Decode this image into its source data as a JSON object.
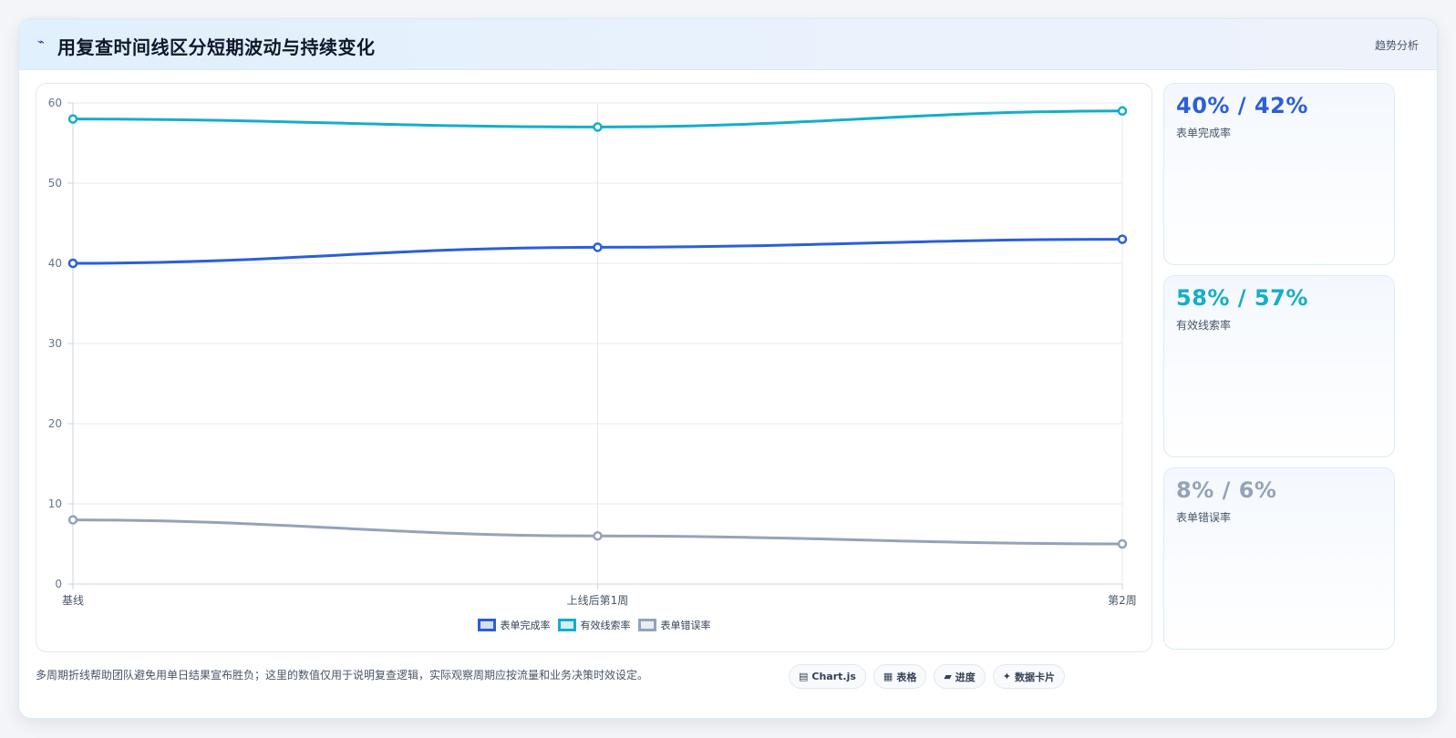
{
  "header": {
    "icon": "⌁",
    "title": "用复查时间线区分短期波动与持续变化",
    "badge": "趋势分析"
  },
  "stats": [
    {
      "value": "40% / 42%",
      "label": "表单完成率",
      "color": "#2b5fd9"
    },
    {
      "value": "58% / 57%",
      "label": "有效线索率",
      "color": "#13aecb"
    },
    {
      "value": "8% / 6%",
      "label": "表单错误率",
      "color": "#94a3b8"
    }
  ],
  "footer": {
    "note": "多周期折线帮助团队避免用单日结果宣布胜负；这里的数值仅用于说明复查逻辑，实际观察周期应按流量和业务决策时效设定。"
  },
  "tags": [
    {
      "icon": "▤",
      "label": "Chart.js"
    },
    {
      "icon": "▦",
      "label": "表格"
    },
    {
      "icon": "▰",
      "label": "进度"
    },
    {
      "icon": "✦",
      "label": "数据卡片"
    }
  ],
  "chart_data": {
    "type": "line",
    "categories": [
      "基线",
      "上线后第1周",
      "第2周"
    ],
    "series": [
      {
        "name": "表单完成率",
        "values": [
          40,
          42,
          43
        ],
        "color": "#2b5fd9"
      },
      {
        "name": "有效线索率",
        "values": [
          58,
          57,
          59
        ],
        "color": "#13aecb"
      },
      {
        "name": "表单错误率",
        "values": [
          8,
          6,
          5
        ],
        "color": "#94a3b8"
      }
    ],
    "ylim": [
      0,
      60
    ],
    "yticks": [
      0,
      10,
      20,
      30,
      40,
      50,
      60
    ],
    "grid": true,
    "legend": "bottom-center"
  }
}
